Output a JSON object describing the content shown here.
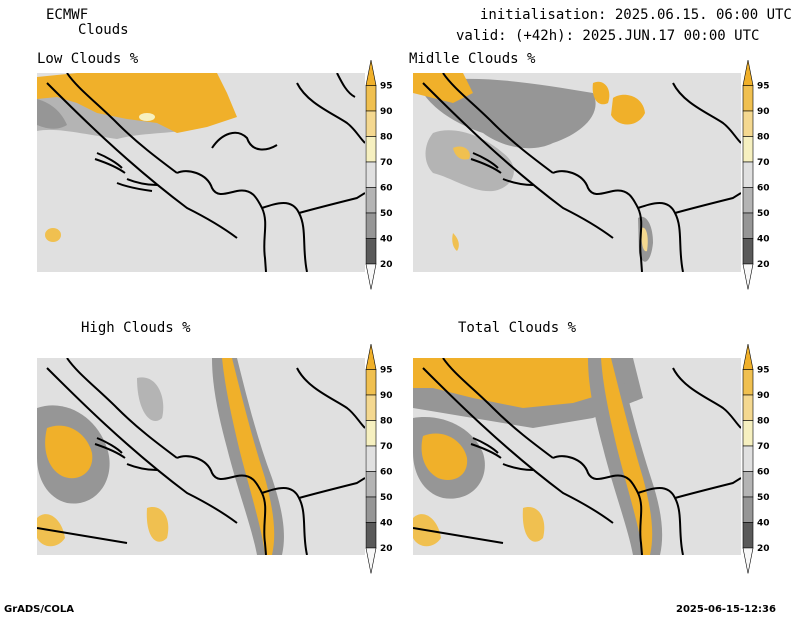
{
  "header": {
    "model": "ECMWF",
    "product": "Clouds",
    "init_line": "initialisation: 2025.06.15. 06:00 UTC",
    "valid_line": "valid: (+42h): 2025.JUN.17 00:00 UTC"
  },
  "panels": [
    {
      "id": "low",
      "title": "Low Clouds %"
    },
    {
      "id": "middle",
      "title": "Midlle Clouds %"
    },
    {
      "id": "high",
      "title": "High Clouds %"
    },
    {
      "id": "total",
      "title": "Total Clouds %"
    }
  ],
  "colorbar": {
    "levels": [
      "95",
      "90",
      "80",
      "70",
      "60",
      "50",
      "40",
      "20"
    ],
    "colors": [
      "#f0b02a",
      "#f0c050",
      "#f4d890",
      "#f6f0c0",
      "#e0e0e0",
      "#b4b4b4",
      "#969696",
      "#5a5a5a",
      "#f8f8f8"
    ]
  },
  "footer": {
    "left": "GrADS/COLA",
    "right": "2025-06-15-12:36"
  }
}
